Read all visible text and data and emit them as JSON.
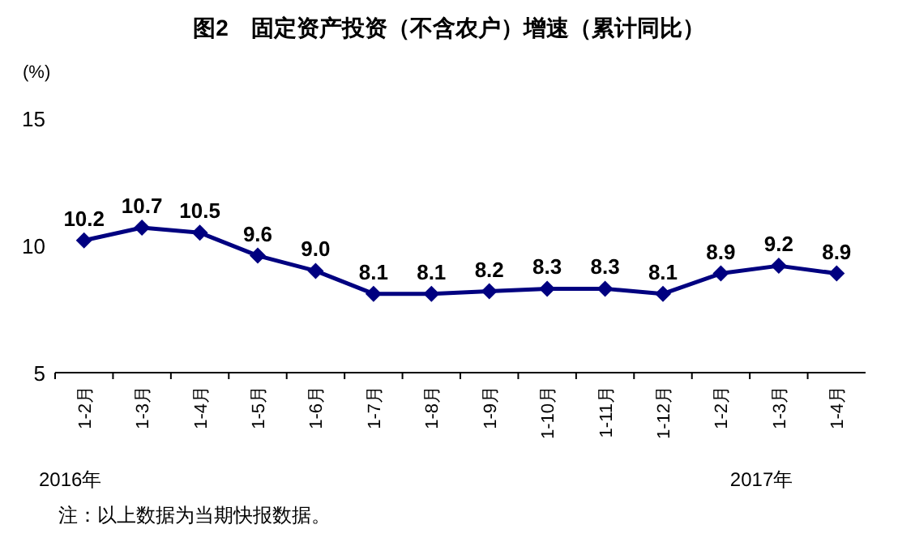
{
  "chart_data": {
    "type": "line",
    "title": "图2　固定资产投资（不含农户）增速（累计同比）",
    "ylabel": "(%)",
    "categories": [
      "1-2月",
      "1-3月",
      "1-4月",
      "1-5月",
      "1-6月",
      "1-7月",
      "1-8月",
      "1-9月",
      "1-10月",
      "1-11月",
      "1-12月",
      "1-2月",
      "1-3月",
      "1-4月"
    ],
    "series": [
      {
        "color": "#000080",
        "values": [
          10.2,
          10.7,
          10.5,
          9.6,
          9.0,
          8.1,
          8.1,
          8.2,
          8.3,
          8.3,
          8.1,
          8.9,
          9.2,
          8.9
        ],
        "value_labels": [
          "10.2",
          "10.7",
          "10.5",
          "9.6",
          "9.0",
          "8.1",
          "8.1",
          "8.2",
          "8.3",
          "8.3",
          "8.1",
          "8.9",
          "9.2",
          "8.9"
        ]
      }
    ],
    "ylim": [
      5,
      15
    ],
    "yticks": [
      5,
      10,
      15
    ],
    "marker": "diamond",
    "line_style": "solid",
    "grid": false,
    "annotations": [
      "2016年",
      "2017年",
      "注：以上数据为当期快报数据。"
    ]
  }
}
